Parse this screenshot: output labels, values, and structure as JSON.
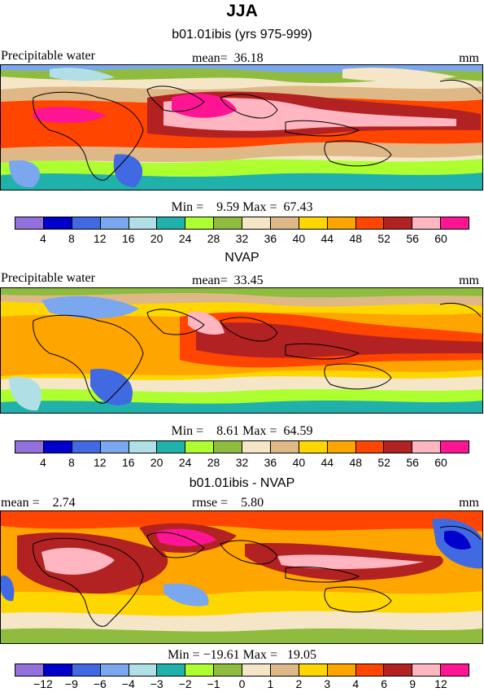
{
  "title": "JJA",
  "panels": [
    {
      "subtitle": "b01.01ibis (yrs 975-999)",
      "left_label": "Precipitable water",
      "center_label": "mean=  36.18",
      "right_label": "mm",
      "minmax": "Min =    9.59 Max =  67.43"
    },
    {
      "subtitle": "NVAP",
      "left_label": "Precipitable water",
      "center_label": "mean=  33.45",
      "right_label": "mm",
      "minmax": "Min =    8.61 Max =  64.59"
    },
    {
      "subtitle": "b01.01ibis - NVAP",
      "left_label": "mean =    2.74",
      "center_label": "rmse =    5.80",
      "right_label": "mm",
      "minmax": "Min = −19.61 Max =   19.05"
    }
  ],
  "colorbar_abs": {
    "ticks": [
      "4",
      "8",
      "12",
      "16",
      "20",
      "24",
      "28",
      "32",
      "36",
      "40",
      "44",
      "48",
      "52",
      "56",
      "60"
    ],
    "colors": [
      "#9370db",
      "#0000cd",
      "#4169e1",
      "#7ba7ef",
      "#b0e0e6",
      "#20b2aa",
      "#adff2f",
      "#8fbc3f",
      "#f5e6c8",
      "#deb887",
      "#ffd700",
      "#ffa500",
      "#ff4500",
      "#b22222",
      "#ffb6c1",
      "#ff1493"
    ]
  },
  "colorbar_diff": {
    "ticks": [
      "−12",
      "−9",
      "−6",
      "−4",
      "−3",
      "−2",
      "−1",
      "0",
      "1",
      "2",
      "3",
      "4",
      "6",
      "9",
      "12"
    ],
    "colors": [
      "#9370db",
      "#0000cd",
      "#4169e1",
      "#7ba7ef",
      "#b0e0e6",
      "#20b2aa",
      "#adff2f",
      "#8fbc3f",
      "#f5e6c8",
      "#deb887",
      "#ffd700",
      "#ffa500",
      "#ff4500",
      "#b22222",
      "#ffb6c1",
      "#ff1493"
    ]
  }
}
